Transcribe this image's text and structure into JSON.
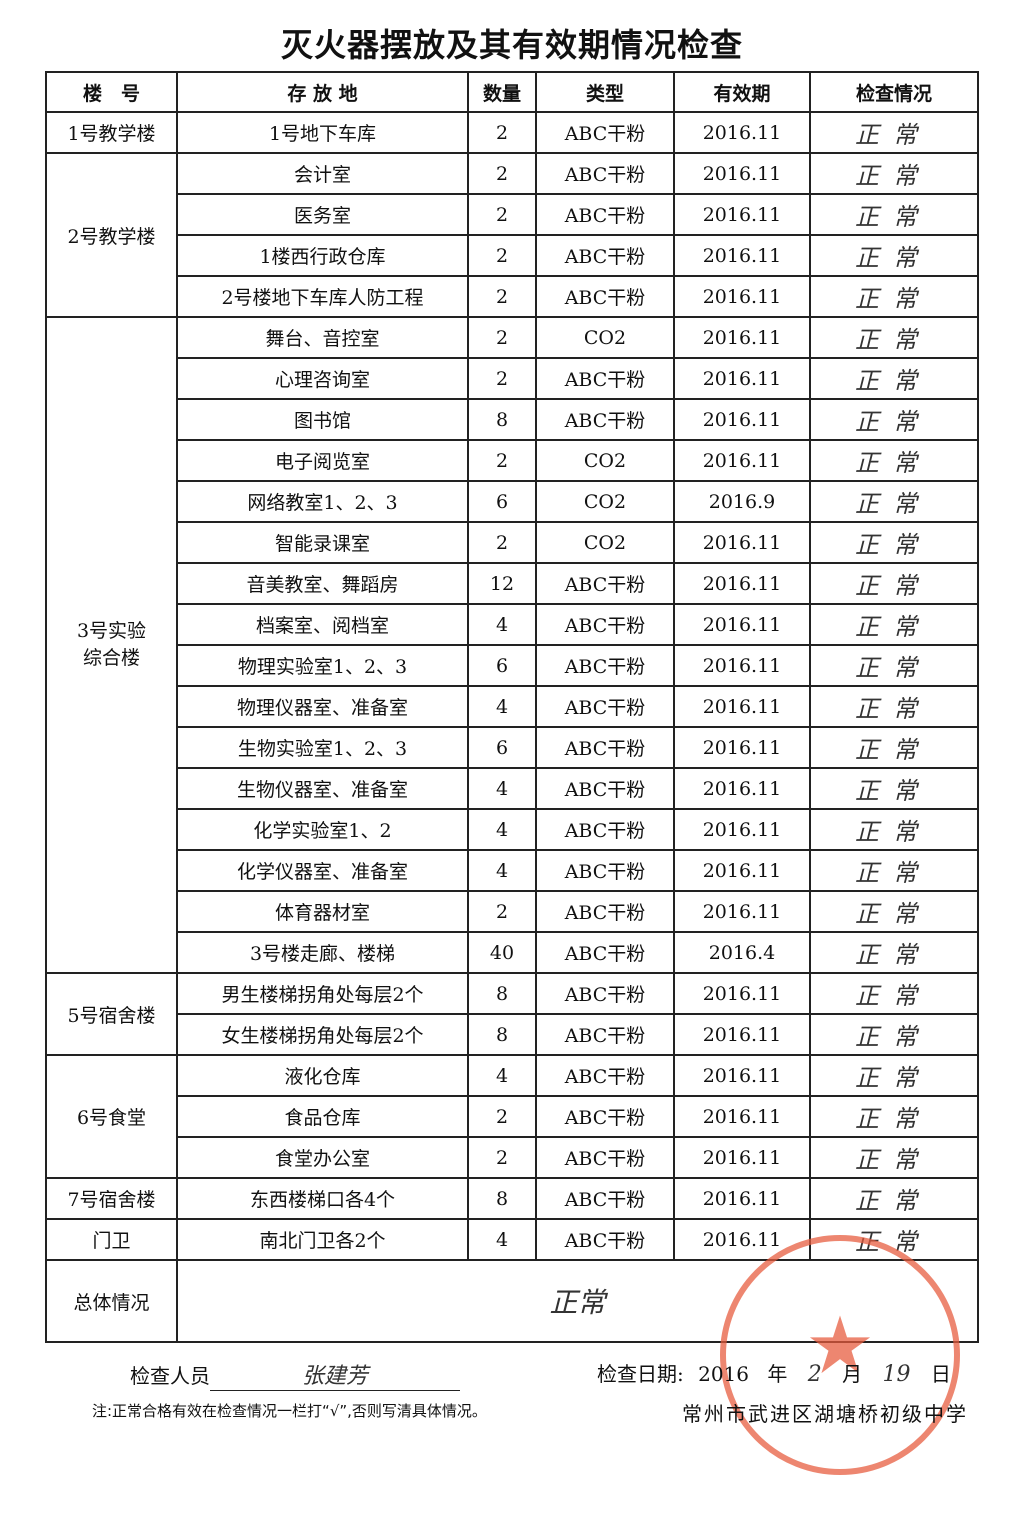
{
  "title": "灭火器摆放及其有效期情况检查",
  "headers": [
    "楼　号",
    "存 放 地",
    "数量",
    "类型",
    "有效期",
    "检查情况"
  ],
  "groups": [
    {
      "building": "1号教学楼",
      "rows": [
        [
          "1号地下车库",
          "2",
          "ABC干粉",
          "2016.11",
          "正常"
        ]
      ]
    },
    {
      "building": "2号教学楼",
      "rows": [
        [
          "会计室",
          "2",
          "ABC干粉",
          "2016.11",
          "正常"
        ],
        [
          "医务室",
          "2",
          "ABC干粉",
          "2016.11",
          "正常"
        ],
        [
          "1楼西行政仓库",
          "2",
          "ABC干粉",
          "2016.11",
          "正常"
        ],
        [
          "2号楼地下车库人防工程",
          "2",
          "ABC干粉",
          "2016.11",
          "正常"
        ]
      ]
    },
    {
      "building": "3号实验综合楼",
      "rows": [
        [
          "舞台、音控室",
          "2",
          "CO2",
          "2016.11",
          "正常"
        ],
        [
          "心理咨询室",
          "2",
          "ABC干粉",
          "2016.11",
          "正常"
        ],
        [
          "图书馆",
          "8",
          "ABC干粉",
          "2016.11",
          "正常"
        ],
        [
          "电子阅览室",
          "2",
          "CO2",
          "2016.11",
          "正常"
        ],
        [
          "网络教室1、2、3",
          "6",
          "CO2",
          "2016.9",
          "正常"
        ],
        [
          "智能录课室",
          "2",
          "CO2",
          "2016.11",
          "正常"
        ],
        [
          "音美教室、舞蹈房",
          "12",
          "ABC干粉",
          "2016.11",
          "正常"
        ],
        [
          "档案室、阅档室",
          "4",
          "ABC干粉",
          "2016.11",
          "正常"
        ],
        [
          "物理实验室1、2、3",
          "6",
          "ABC干粉",
          "2016.11",
          "正常"
        ],
        [
          "物理仪器室、准备室",
          "4",
          "ABC干粉",
          "2016.11",
          "正常"
        ],
        [
          "生物实验室1、2、3",
          "6",
          "ABC干粉",
          "2016.11",
          "正常"
        ],
        [
          "生物仪器室、准备室",
          "4",
          "ABC干粉",
          "2016.11",
          "正常"
        ],
        [
          "化学实验室1、2",
          "4",
          "ABC干粉",
          "2016.11",
          "正常"
        ],
        [
          "化学仪器室、准备室",
          "4",
          "ABC干粉",
          "2016.11",
          "正常"
        ],
        [
          "体育器材室",
          "2",
          "ABC干粉",
          "2016.11",
          "正常"
        ],
        [
          "3号楼走廊、楼梯",
          "40",
          "ABC干粉",
          "2016.4",
          "正常"
        ]
      ]
    },
    {
      "building": "5号宿舍楼",
      "rows": [
        [
          "男生楼梯拐角处每层2个",
          "8",
          "ABC干粉",
          "2016.11",
          "正常"
        ],
        [
          "女生楼梯拐角处每层2个",
          "8",
          "ABC干粉",
          "2016.11",
          "正常"
        ]
      ]
    },
    {
      "building": "6号食堂",
      "rows": [
        [
          "液化仓库",
          "4",
          "ABC干粉",
          "2016.11",
          "正常"
        ],
        [
          "食品仓库",
          "2",
          "ABC干粉",
          "2016.11",
          "正常"
        ],
        [
          "食堂办公室",
          "2",
          "ABC干粉",
          "2016.11",
          "正常"
        ]
      ]
    },
    {
      "building": "7号宿舍楼",
      "rows": [
        [
          "东西楼梯口各4个",
          "8",
          "ABC干粉",
          "2016.11",
          "正常"
        ]
      ]
    },
    {
      "building": "门卫",
      "rows": [
        [
          "南北门卫各2个",
          "4",
          "ABC干粉",
          "2016.11",
          "正常"
        ]
      ]
    }
  ],
  "summary": {
    "label": "总体情况",
    "value": "正常"
  },
  "inspector": {
    "label": "检查人员",
    "value": "张建芳"
  },
  "date": {
    "label": "检查日期:",
    "year": "2016",
    "year_unit": "年",
    "month": "2",
    "month_unit": "月",
    "day": "19",
    "day_unit": "日"
  },
  "note": "注:正常合格有效在检查情况一栏打“√”,否则写清具体情况。",
  "school": "常州市武进区湖塘桥初级中学",
  "stamp_color": "#e65a3c"
}
